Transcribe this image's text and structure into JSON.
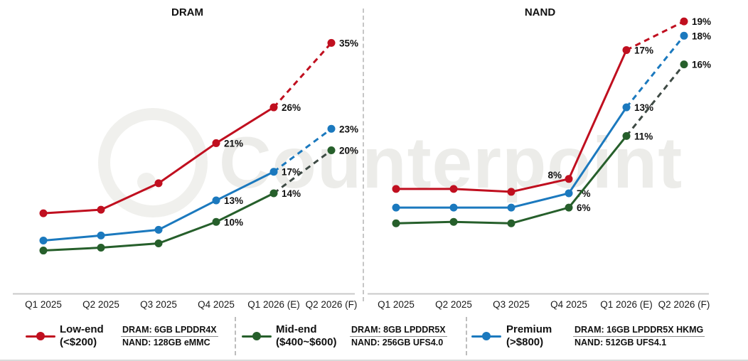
{
  "watermark": {
    "text": "Counterpoint"
  },
  "chart_data": [
    {
      "type": "line",
      "title": "DRAM",
      "unit": "%",
      "grid": false,
      "categories": [
        "Q1 2025",
        "Q2 2025",
        "Q3 2025",
        "Q4 2025",
        "Q1 2026 (E)",
        "Q2 2026 (F)"
      ],
      "ylim": [
        0,
        40
      ],
      "forecast_dashed_from_index": 4,
      "series": [
        {
          "name": "Low-end",
          "color": "#c00f1f",
          "dash_color": "#c00f1f",
          "values": [
            11.2,
            11.7,
            15.4,
            21,
            26,
            35
          ],
          "point_labels": [
            "",
            "",
            "",
            "21%",
            "26%",
            "35%"
          ],
          "label_sides": [
            "",
            "",
            "",
            "",
            "",
            ""
          ]
        },
        {
          "name": "Mid-end",
          "color": "#265f2b",
          "dash_color": "#3e4a44",
          "values": [
            6,
            6.4,
            7,
            10,
            14,
            20
          ],
          "point_labels": [
            "",
            "",
            "",
            "10%",
            "14%",
            "20%"
          ],
          "label_sides": [
            "",
            "",
            "",
            "",
            "",
            ""
          ]
        },
        {
          "name": "Premium",
          "color": "#1b79be",
          "dash_color": "#1b79be",
          "values": [
            7.4,
            8.1,
            8.9,
            13,
            17,
            23
          ],
          "point_labels": [
            "",
            "",
            "",
            "13%",
            "17%",
            "23%"
          ],
          "label_sides": [
            "",
            "",
            "",
            "",
            "",
            ""
          ]
        }
      ]
    },
    {
      "type": "line",
      "title": "NAND",
      "unit": "%",
      "grid": false,
      "categories": [
        "Q1 2025",
        "Q2 2025",
        "Q3 2025",
        "Q4 2025",
        "Q1 2026 (E)",
        "Q2 2026 (F)"
      ],
      "ylim": [
        0,
        20
      ],
      "forecast_dashed_from_index": 4,
      "series": [
        {
          "name": "Low-end",
          "color": "#c00f1f",
          "dash_color": "#c00f1f",
          "values": [
            7.3,
            7.3,
            7.1,
            8,
            17,
            19
          ],
          "point_labels": [
            "",
            "",
            "",
            "8%",
            "17%",
            "19%"
          ],
          "label_sides": [
            "",
            "",
            "",
            "left",
            "",
            ""
          ]
        },
        {
          "name": "Mid-end",
          "color": "#265f2b",
          "dash_color": "#3e4a44",
          "values": [
            4.9,
            5,
            4.9,
            6,
            11,
            16
          ],
          "point_labels": [
            "",
            "",
            "",
            "6%",
            "11%",
            "16%"
          ],
          "label_sides": [
            "",
            "",
            "",
            "",
            "",
            ""
          ]
        },
        {
          "name": "Premium",
          "color": "#1b79be",
          "dash_color": "#1b79be",
          "values": [
            6,
            6,
            6,
            7,
            13,
            18
          ],
          "point_labels": [
            "",
            "",
            "",
            "7%",
            "13%",
            "18%"
          ],
          "label_sides": [
            "",
            "",
            "",
            "",
            "",
            ""
          ]
        }
      ]
    }
  ],
  "legend": {
    "items": [
      {
        "name": "Low-end",
        "price_range": "(<$200)",
        "dram_spec": "DRAM: 6GB LPDDR4X",
        "nand_spec": "NAND: 128GB eMMC",
        "color": "#c00f1f"
      },
      {
        "name": "Mid-end",
        "price_range": "($400~$600)",
        "dram_spec": "DRAM: 8GB LPDDR5X",
        "nand_spec": "NAND: 256GB UFS4.0",
        "color": "#265f2b"
      },
      {
        "name": "Premium",
        "price_range": "(>$800)",
        "dram_spec": "DRAM: 16GB LPDDR5X HKMG",
        "nand_spec": "NAND: 512GB UFS4.1",
        "color": "#1b79be"
      }
    ]
  }
}
